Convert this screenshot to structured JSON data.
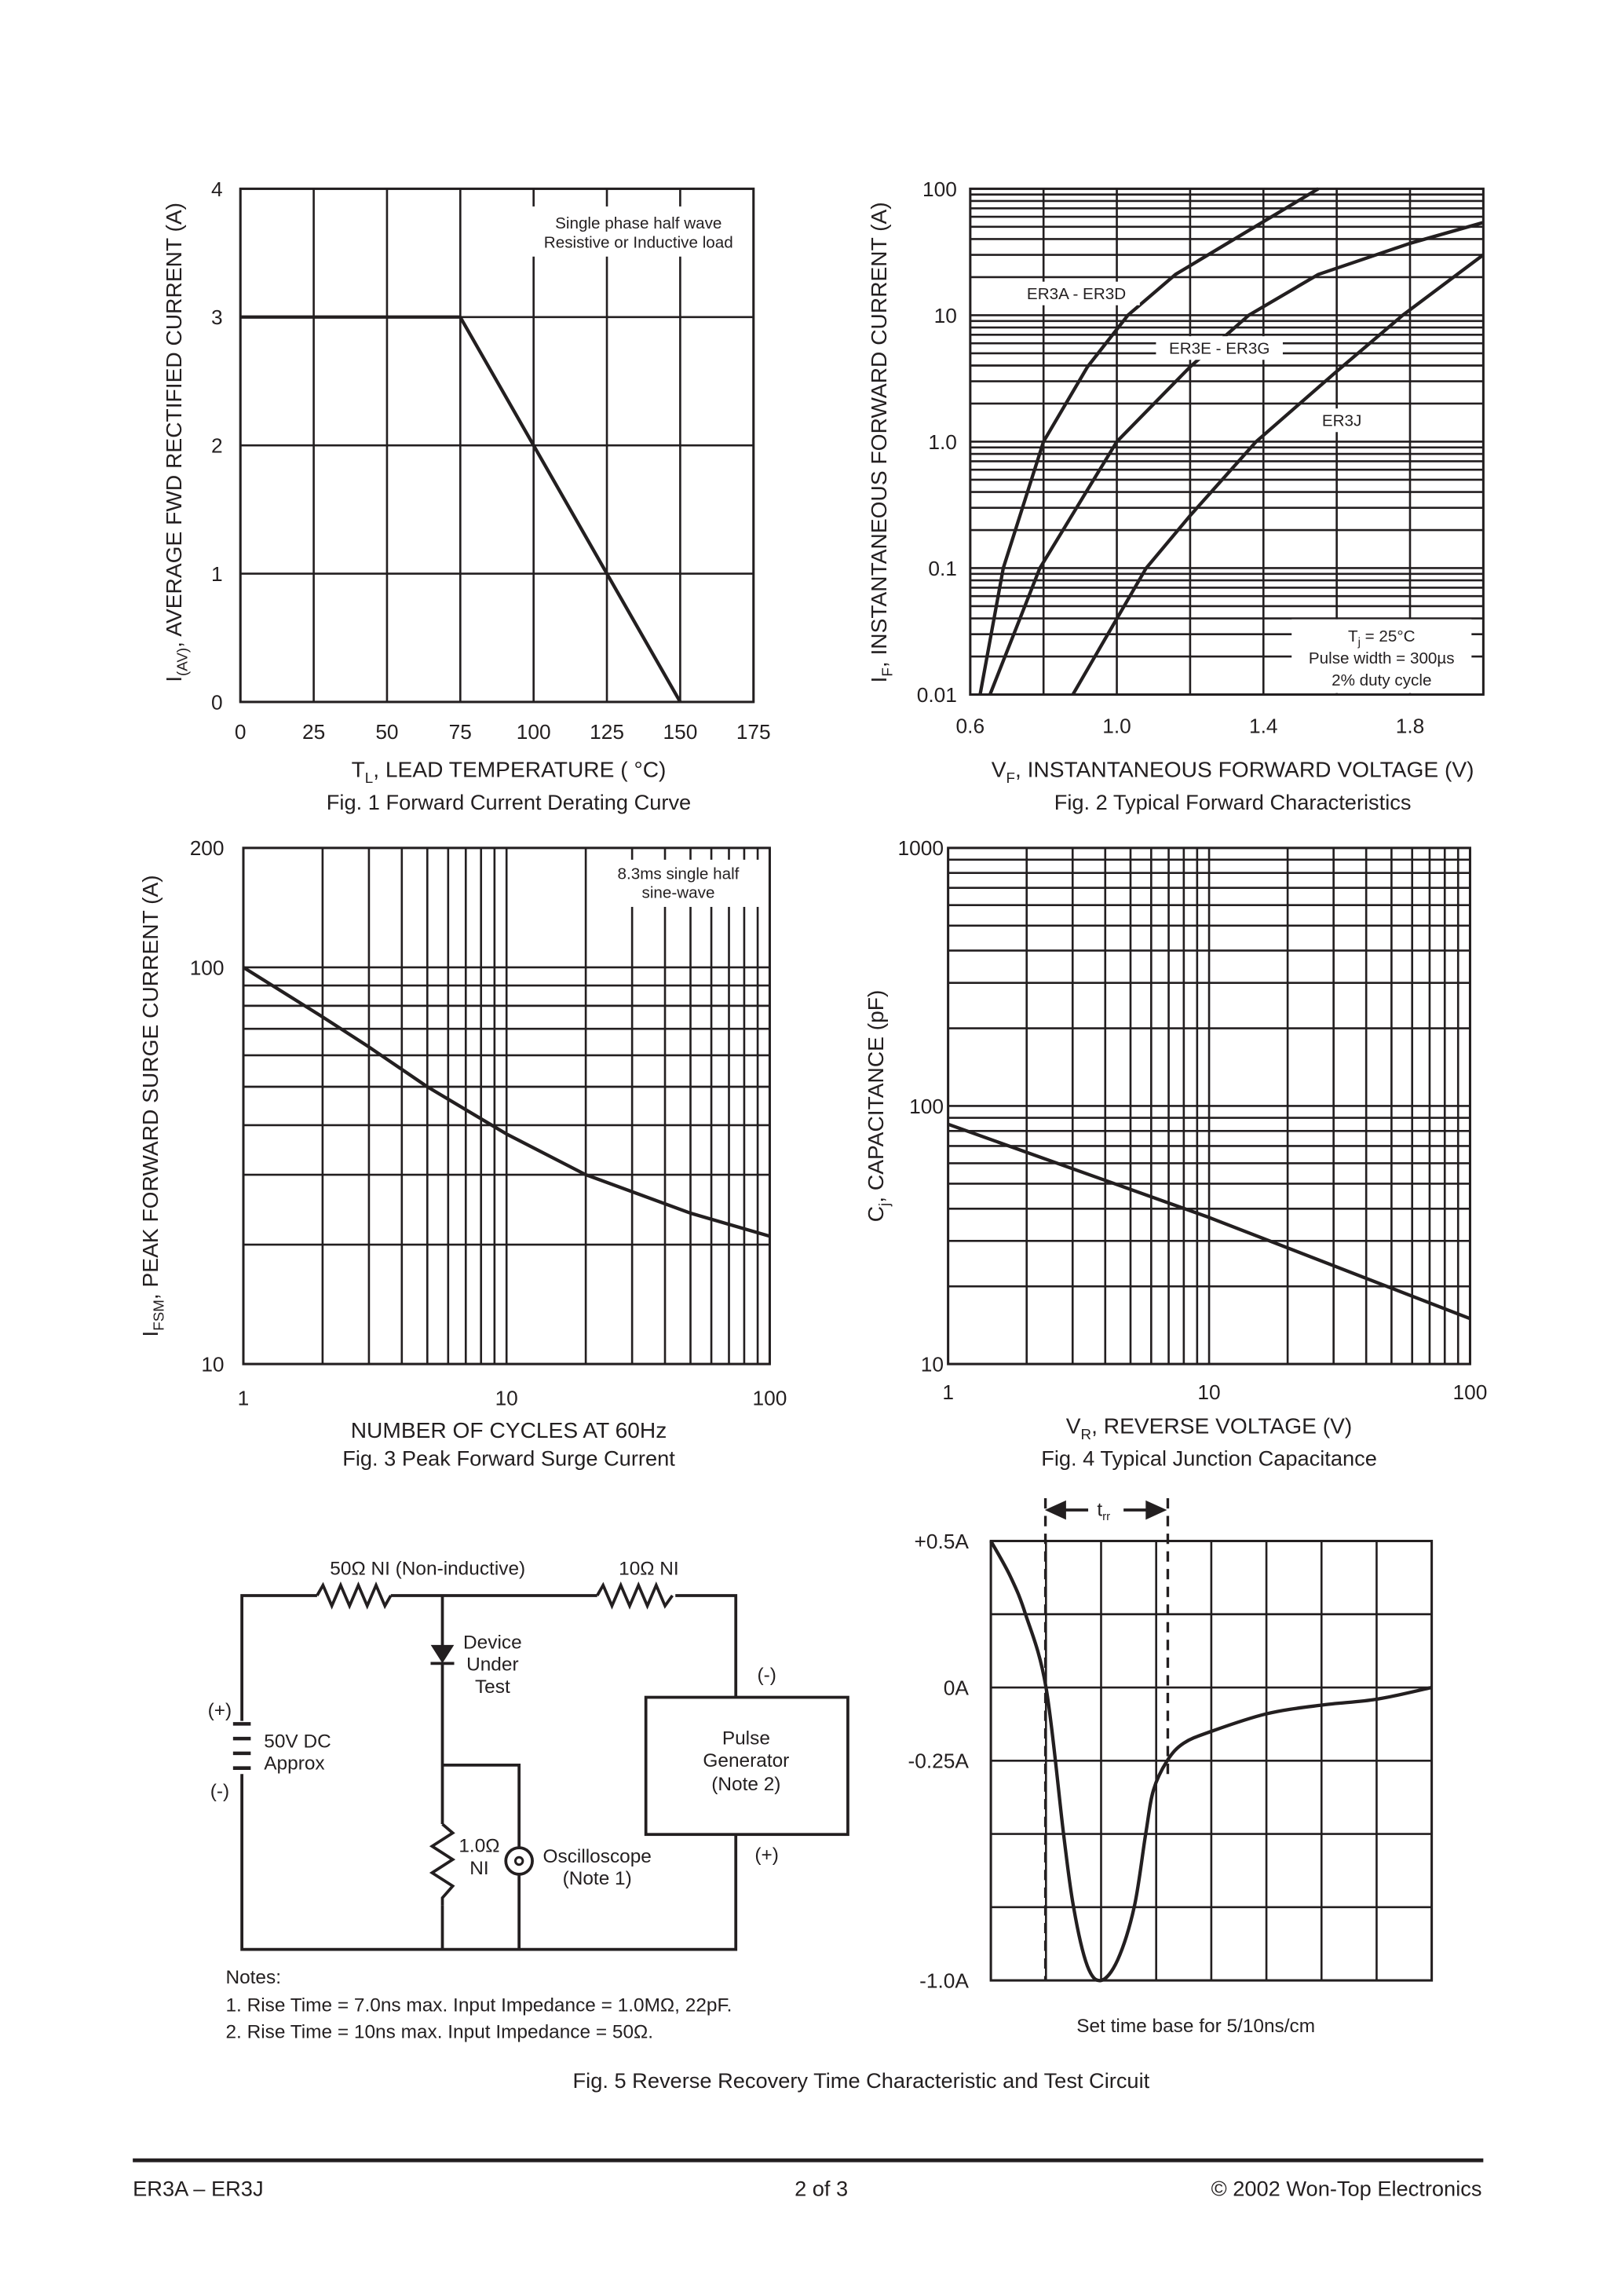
{
  "chart_data": [
    {
      "type": "line",
      "title": "Fig. 1  Forward Current Derating Curve",
      "xlabel": {
        "main": "T",
        "sub": "L",
        "rest": ", LEAD TEMPERATURE     ( °C)"
      },
      "ylabel": {
        "main": "I",
        "sub": "(AV)",
        "rest": ", AVERAGE FWD RECTIFIED CURRENT (A)"
      },
      "xlim": [
        0,
        175
      ],
      "ylim": [
        0,
        4
      ],
      "xscale": "linear",
      "yscale": "linear",
      "grid": true,
      "xticks": [
        "0",
        "25",
        "50",
        "75",
        "100",
        "125",
        "150",
        "175"
      ],
      "yticks": [
        "0",
        "1",
        "2",
        "3",
        "4"
      ],
      "annotation": [
        "Single phase half wave",
        "Resistive or Inductive load"
      ],
      "series": [
        {
          "x": [
            0,
            75,
            150
          ],
          "y": [
            3,
            3,
            0
          ]
        }
      ]
    },
    {
      "type": "line",
      "title": "Fig. 2  Typical Forward Characteristics",
      "xlabel": {
        "main": "V",
        "sub": "F",
        "rest": ", INSTANTANEOUS FORWARD VOLTAGE (V)"
      },
      "ylabel": {
        "main": "I",
        "sub": "F",
        "rest": ", INSTANTANEOUS FORWARD CURRENT (A)"
      },
      "xlim": [
        0.6,
        2.0
      ],
      "ylim": [
        0.01,
        100
      ],
      "xscale": "linear",
      "yscale": "log",
      "grid": true,
      "xticks": [
        "0.6",
        "1.0",
        "1.4",
        "1.8"
      ],
      "yticks": [
        "0.01",
        "0.1",
        "1.0",
        "10",
        "100"
      ],
      "annotation": {
        "tj_main": "T",
        "tj_sub": "j",
        "tj_rest": " = 25°C",
        "pulse": "Pulse width = 300µs",
        "duty": "2% duty cycle"
      },
      "series": [
        {
          "name": "ER3A - ER3D",
          "x": [
            0.627,
            0.69,
            0.8,
            0.92,
            1.03,
            1.16,
            1.4,
            1.55
          ],
          "y": [
            0.01,
            0.1,
            1,
            3.9,
            10,
            21,
            55,
            100
          ]
        },
        {
          "name": "ER3E - ER3G",
          "x": [
            0.654,
            0.79,
            1.0,
            1.2,
            1.36,
            1.55,
            1.8,
            2.0
          ],
          "y": [
            0.01,
            0.1,
            1,
            3.9,
            10,
            21,
            37,
            54
          ]
        },
        {
          "name": "ER3J",
          "x": [
            0.88,
            1.08,
            1.2,
            1.38,
            1.6,
            1.78,
            2.0
          ],
          "y": [
            0.01,
            0.1,
            0.26,
            1,
            3.6,
            10,
            30
          ]
        }
      ]
    },
    {
      "type": "line",
      "title": "Fig. 3  Peak Forward Surge Current",
      "xlabel": {
        "main": "NUMBER OF CYCLES AT 60Hz",
        "sub": "",
        "rest": ""
      },
      "ylabel": {
        "main": "I",
        "sub": "FSM",
        "rest": ", PEAK FORWARD SURGE CURRENT (A)"
      },
      "xlim": [
        1,
        100
      ],
      "ylim": [
        10,
        200
      ],
      "xscale": "log",
      "yscale": "log",
      "grid": true,
      "xticks": [
        "1",
        "10",
        "100"
      ],
      "yticks": [
        "10",
        "100",
        "200"
      ],
      "annotation": [
        "8.3ms single half",
        "sine-wave"
      ],
      "series": [
        {
          "x": [
            1,
            2,
            3,
            5,
            10,
            20,
            50,
            100
          ],
          "y": [
            100,
            75,
            63,
            50,
            38,
            30,
            24,
            21
          ]
        }
      ]
    },
    {
      "type": "line",
      "title": "Fig. 4  Typical Junction Capacitance",
      "xlabel": {
        "main": "V",
        "sub": "R",
        "rest": ", REVERSE VOLTAGE (V)"
      },
      "ylabel": {
        "main": "C",
        "sub": "j",
        "rest": ", CAPACITANCE (pF)"
      },
      "xlim": [
        1,
        100
      ],
      "ylim": [
        10,
        1000
      ],
      "xscale": "log",
      "yscale": "log",
      "grid": true,
      "xticks": [
        "1",
        "10",
        "100"
      ],
      "yticks": [
        "10",
        "100",
        "1000"
      ],
      "series": [
        {
          "x": [
            1,
            10,
            100
          ],
          "y": [
            85,
            37,
            15
          ]
        }
      ]
    },
    {
      "type": "line",
      "title": "Fig. 5  Reverse Recovery Time Characteristic and Test Circuit",
      "xlabel": "Set time base for 5/10ns/cm",
      "xlim": [
        0,
        8
      ],
      "ylim": [
        -1.0,
        0.5
      ],
      "grid": true,
      "yticks": [
        {
          "value": 0.5,
          "label": "+0.5A"
        },
        {
          "value": 0,
          "label": "0A"
        },
        {
          "value": -0.25,
          "label": "-0.25A"
        },
        {
          "value": -1.0,
          "label": "-1.0A"
        }
      ],
      "trr": {
        "main": "t",
        "sub": "rr",
        "start_div": 1,
        "end_div": 3.2
      },
      "series": [
        {
          "x": [
            0,
            0.35,
            0.63,
            1,
            1.32,
            1.5,
            1.75,
            2,
            2.3,
            2.6,
            2.81,
            2.95,
            3.2,
            3.5,
            4,
            5,
            6,
            7,
            8
          ],
          "y": [
            0.5,
            0.38,
            0.25,
            0,
            -0.5,
            -0.75,
            -0.95,
            -1.0,
            -0.93,
            -0.75,
            -0.5,
            -0.35,
            -0.25,
            -0.19,
            -0.15,
            -0.09,
            -0.06,
            -0.04,
            0
          ]
        }
      ]
    }
  ],
  "circuit": {
    "r50": "50Ω NI (Non-inductive)",
    "r10": "10Ω NI",
    "dut": [
      "Device",
      "Under",
      "Test"
    ],
    "batt_plus": "(+)",
    "batt_minus": "(-)",
    "battery": [
      "50V DC",
      "Approx"
    ],
    "gen_minus": "(-)",
    "gen_plus": "(+)",
    "generator": [
      "Pulse",
      "Generator",
      "(Note 2)"
    ],
    "r1": [
      "1.0Ω",
      "NI"
    ],
    "scope": [
      "Oscilloscope",
      "(Note 1)"
    ],
    "notes": [
      "Notes:",
      "1. Rise Time = 7.0ns max. Input Impedance = 1.0MΩ, 22pF.",
      "2. Rise Time = 10ns max. Input Impedance = 50Ω."
    ]
  },
  "footer": {
    "left": "ER3A – ER3J",
    "center": "2 of 3",
    "right": "© 2002 Won-Top Electronics"
  }
}
